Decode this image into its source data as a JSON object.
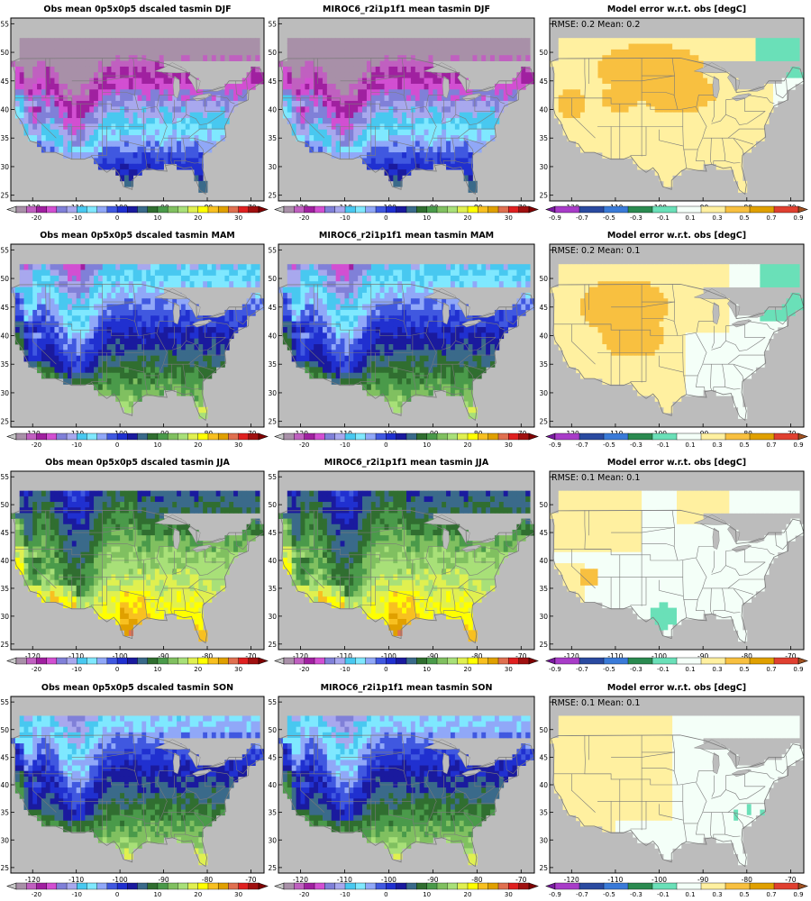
{
  "figure": {
    "lat_ticks": [
      "25",
      "30",
      "35",
      "40",
      "45",
      "50",
      "55"
    ],
    "lon_ticks": [
      "-120",
      "-110",
      "-100",
      "-90",
      "-80",
      "-70"
    ],
    "temp_colorbar": {
      "labels": [
        "-20",
        "-10",
        "0",
        "10",
        "20",
        "30"
      ],
      "colors": [
        "#c8c8c8",
        "#a890a8",
        "#c060c0",
        "#a020a0",
        "#d24fd2",
        "#8080d8",
        "#a8a8ee",
        "#48c8f0",
        "#7fe8ff",
        "#90a8f8",
        "#4058e0",
        "#2030d0",
        "#1a1a9e",
        "#3a6a8a",
        "#306e30",
        "#4a9a4a",
        "#80c060",
        "#a8e078",
        "#e0f050",
        "#ffff00",
        "#f8c020",
        "#e0a000",
        "#e07050",
        "#e02020",
        "#a01010",
        "#800000"
      ]
    },
    "err_colorbar": {
      "labels": [
        "-0.9",
        "-0.7",
        "-0.5",
        "-0.3",
        "-0.1",
        "0.1",
        "0.3",
        "0.5",
        "0.7",
        "0.9"
      ],
      "colors": [
        "#7a1aa0",
        "#a83cc8",
        "#2a4aa0",
        "#3a7ad8",
        "#2a8a50",
        "#6ae0b8",
        "#f4fff8",
        "#fff0a0",
        "#f8c040",
        "#e0a000",
        "#e04030",
        "#a05020"
      ]
    }
  },
  "chart_data": [
    {
      "type": "heatmap",
      "title": "Obs mean 0p5x0p5 dscaled tasmin DJF",
      "xlim": [
        -125,
        -67
      ],
      "ylim": [
        24,
        56
      ],
      "colorbar": "temp",
      "season": "DJF"
    },
    {
      "type": "heatmap",
      "title": "MIROC6_r2i1p1f1 mean tasmin DJF",
      "xlim": [
        -125,
        -67
      ],
      "ylim": [
        24,
        56
      ],
      "colorbar": "temp",
      "season": "DJF"
    },
    {
      "type": "heatmap",
      "title": "Model error w.r.t. obs [degC]",
      "annotation": "RMSE: 0.2  Mean: 0.2",
      "rmse": 0.2,
      "mean": 0.2,
      "xlim": [
        -125,
        -67
      ],
      "ylim": [
        24,
        56
      ],
      "colorbar": "err",
      "season": "DJF"
    },
    {
      "type": "heatmap",
      "title": "Obs mean 0p5x0p5 dscaled tasmin MAM",
      "xlim": [
        -125,
        -67
      ],
      "ylim": [
        24,
        56
      ],
      "colorbar": "temp",
      "season": "MAM"
    },
    {
      "type": "heatmap",
      "title": "MIROC6_r2i1p1f1 mean tasmin MAM",
      "xlim": [
        -125,
        -67
      ],
      "ylim": [
        24,
        56
      ],
      "colorbar": "temp",
      "season": "MAM"
    },
    {
      "type": "heatmap",
      "title": "Model error w.r.t. obs [degC]",
      "annotation": "RMSE: 0.2  Mean: 0.1",
      "rmse": 0.2,
      "mean": 0.1,
      "xlim": [
        -125,
        -67
      ],
      "ylim": [
        24,
        56
      ],
      "colorbar": "err",
      "season": "MAM"
    },
    {
      "type": "heatmap",
      "title": "Obs mean 0p5x0p5 dscaled tasmin JJA",
      "xlim": [
        -125,
        -67
      ],
      "ylim": [
        24,
        56
      ],
      "colorbar": "temp",
      "season": "JJA"
    },
    {
      "type": "heatmap",
      "title": "MIROC6_r2i1p1f1 mean tasmin JJA",
      "xlim": [
        -125,
        -67
      ],
      "ylim": [
        24,
        56
      ],
      "colorbar": "temp",
      "season": "JJA"
    },
    {
      "type": "heatmap",
      "title": "Model error w.r.t. obs [degC]",
      "annotation": "RMSE: 0.1  Mean: 0.1",
      "rmse": 0.1,
      "mean": 0.1,
      "xlim": [
        -125,
        -67
      ],
      "ylim": [
        24,
        56
      ],
      "colorbar": "err",
      "season": "JJA"
    },
    {
      "type": "heatmap",
      "title": "Obs mean 0p5x0p5 dscaled tasmin SON",
      "xlim": [
        -125,
        -67
      ],
      "ylim": [
        24,
        56
      ],
      "colorbar": "temp",
      "season": "SON"
    },
    {
      "type": "heatmap",
      "title": "MIROC6_r2i1p1f1 mean tasmin SON",
      "xlim": [
        -125,
        -67
      ],
      "ylim": [
        24,
        56
      ],
      "colorbar": "temp",
      "season": "SON"
    },
    {
      "type": "heatmap",
      "title": "Model error w.r.t. obs [degC]",
      "annotation": "RMSE: 0.1  Mean: 0.1",
      "rmse": 0.1,
      "mean": 0.1,
      "xlim": [
        -125,
        -67
      ],
      "ylim": [
        24,
        56
      ],
      "colorbar": "err",
      "season": "SON"
    }
  ]
}
